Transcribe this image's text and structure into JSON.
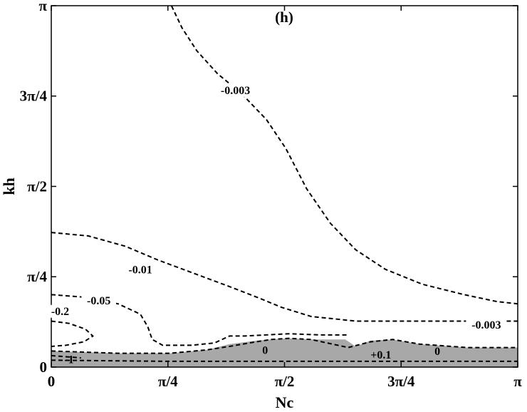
{
  "chart_data": {
    "type": "contour",
    "panel_label": "(h)",
    "xlabel": "Nc",
    "ylabel": "kh",
    "xlim": [
      0,
      3.14159
    ],
    "ylim": [
      0,
      3.14159
    ],
    "x_ticks": [
      {
        "value": 0,
        "label": "0"
      },
      {
        "value": 0.7854,
        "label": "π/4"
      },
      {
        "value": 1.5708,
        "label": "π/2"
      },
      {
        "value": 2.3562,
        "label": "3π/4"
      },
      {
        "value": 3.14159,
        "label": "π"
      }
    ],
    "y_ticks": [
      {
        "value": 0,
        "label": "0"
      },
      {
        "value": 0.7854,
        "label": "π/4"
      },
      {
        "value": 1.5708,
        "label": "π/2"
      },
      {
        "value": 2.3562,
        "label": "3π/4"
      },
      {
        "value": 3.14159,
        "label": "π"
      }
    ],
    "contours": [
      {
        "level": "-0.003",
        "points": [
          [
            0.81,
            3.14
          ],
          [
            0.88,
            2.95
          ],
          [
            0.98,
            2.75
          ],
          [
            1.12,
            2.55
          ],
          [
            1.28,
            2.38
          ],
          [
            1.45,
            2.15
          ],
          [
            1.58,
            1.9
          ],
          [
            1.72,
            1.55
          ],
          [
            1.88,
            1.25
          ],
          [
            2.05,
            1.02
          ],
          [
            2.25,
            0.85
          ],
          [
            2.5,
            0.72
          ],
          [
            2.78,
            0.63
          ],
          [
            3.0,
            0.57
          ],
          [
            3.14,
            0.55
          ]
        ]
      },
      {
        "level": "-0.01",
        "points": [
          [
            0,
            1.17
          ],
          [
            0.25,
            1.14
          ],
          [
            0.5,
            1.05
          ],
          [
            0.72,
            0.93
          ],
          [
            0.95,
            0.82
          ],
          [
            1.2,
            0.7
          ],
          [
            1.4,
            0.6
          ],
          [
            1.55,
            0.52
          ],
          [
            1.75,
            0.44
          ],
          [
            2.05,
            0.4
          ],
          [
            2.4,
            0.4
          ],
          [
            2.8,
            0.4
          ],
          [
            3.14,
            0.4
          ]
        ]
      },
      {
        "level": "-0.05",
        "points": [
          [
            0,
            0.63
          ],
          [
            0.2,
            0.61
          ],
          [
            0.45,
            0.55
          ],
          [
            0.6,
            0.46
          ],
          [
            0.65,
            0.35
          ],
          [
            0.68,
            0.24
          ],
          [
            0.75,
            0.19
          ],
          [
            0.95,
            0.19
          ],
          [
            1.1,
            0.21
          ],
          [
            1.2,
            0.27
          ],
          [
            1.3,
            0.27
          ],
          [
            1.45,
            0.28
          ],
          [
            1.6,
            0.29
          ],
          [
            1.8,
            0.28
          ],
          [
            2.0,
            0.28
          ]
        ]
      },
      {
        "level": "-0.2",
        "points": [
          [
            0,
            0.4
          ],
          [
            0.12,
            0.38
          ],
          [
            0.23,
            0.33
          ],
          [
            0.28,
            0.27
          ],
          [
            0.22,
            0.22
          ],
          [
            0.1,
            0.19
          ],
          [
            0,
            0.18
          ]
        ]
      },
      {
        "level": "-1",
        "points": [
          [
            0,
            0.1
          ],
          [
            0.1,
            0.09
          ],
          [
            0.2,
            0.08
          ]
        ]
      },
      {
        "level": "0",
        "points": [
          [
            0,
            0.14
          ],
          [
            0.45,
            0.12
          ],
          [
            0.8,
            0.12
          ],
          [
            1.05,
            0.15
          ],
          [
            1.2,
            0.18
          ],
          [
            1.38,
            0.22
          ],
          [
            1.48,
            0.24
          ],
          [
            1.6,
            0.25
          ],
          [
            1.75,
            0.24
          ],
          [
            2.0,
            0.17
          ],
          [
            2.15,
            0.22
          ],
          [
            2.3,
            0.24
          ],
          [
            2.48,
            0.2
          ],
          [
            2.8,
            0.17
          ],
          [
            3.14,
            0.17
          ]
        ]
      },
      {
        "level": "+0.1",
        "points": [
          [
            0,
            0.06
          ],
          [
            0.8,
            0.05
          ],
          [
            1.5,
            0.05
          ],
          [
            2.2,
            0.05
          ],
          [
            3.14,
            0.05
          ]
        ]
      }
    ],
    "shaded_region": {
      "color": "#a8a8a8",
      "upper": [
        [
          0,
          0.14
        ],
        [
          0.45,
          0.12
        ],
        [
          0.8,
          0.12
        ],
        [
          1.05,
          0.15
        ],
        [
          1.2,
          0.2
        ],
        [
          1.38,
          0.23
        ],
        [
          1.48,
          0.24
        ],
        [
          1.6,
          0.25
        ],
        [
          1.75,
          0.24
        ],
        [
          1.98,
          0.24
        ],
        [
          2.05,
          0.18
        ],
        [
          2.15,
          0.23
        ],
        [
          2.3,
          0.24
        ],
        [
          2.48,
          0.2
        ],
        [
          2.8,
          0.17
        ],
        [
          3.14,
          0.17
        ]
      ]
    },
    "contour_labels": [
      {
        "text": "-0.003",
        "x": 1.24,
        "y": 2.38
      },
      {
        "text": "-0.01",
        "x": 0.6,
        "y": 0.82
      },
      {
        "text": "-0.05",
        "x": 0.32,
        "y": 0.55
      },
      {
        "text": "-0.2",
        "x": 0.06,
        "y": 0.46
      },
      {
        "text": "-0.003",
        "x": 2.93,
        "y": 0.34
      },
      {
        "text": "0",
        "x": 1.44,
        "y": 0.12
      },
      {
        "text": "+0.1",
        "x": 2.22,
        "y": 0.08
      },
      {
        "text": "0",
        "x": 2.6,
        "y": 0.11
      },
      {
        "text": "-1",
        "x": 0.12,
        "y": 0.04
      }
    ]
  }
}
